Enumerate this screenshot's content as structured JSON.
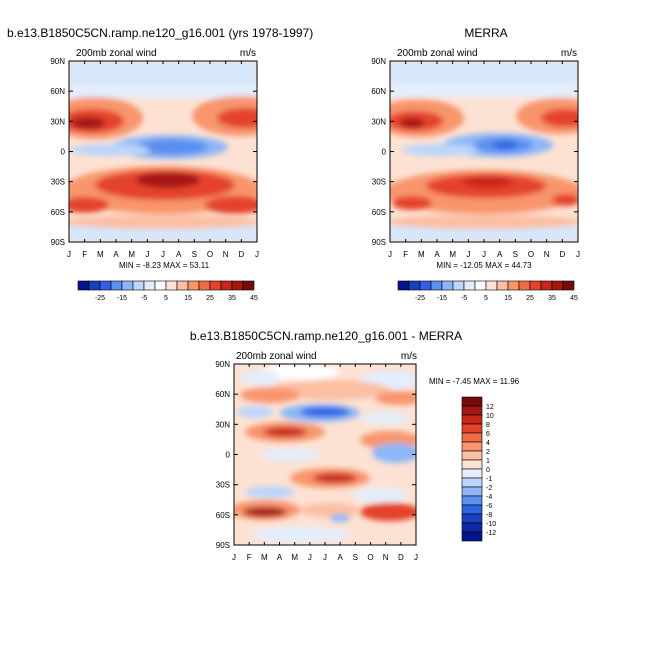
{
  "chart_data": [
    {
      "type": "heatmap",
      "title": "b.e13.B1850C5CN.ramp.ne120_g16.001 (yrs 1978-1997)",
      "subtitle_left": "200mb zonal wind",
      "subtitle_right": "m/s",
      "x_ticks": [
        "J",
        "F",
        "M",
        "A",
        "M",
        "J",
        "J",
        "A",
        "S",
        "O",
        "N",
        "D",
        "J"
      ],
      "y_ticks": [
        "90N",
        "60N",
        "30N",
        "0",
        "30S",
        "60S",
        "90S"
      ],
      "stats": "MIN = -8.23 MAX = 53.11",
      "colorbar": {
        "labels": [
          "-25",
          "-15",
          "-5",
          "5",
          "15",
          "25",
          "35",
          "45"
        ],
        "colors": [
          "#04148c",
          "#1a3fbf",
          "#2f62e3",
          "#5b8ff0",
          "#8db7f7",
          "#bcd5fb",
          "#e3eefd",
          "#ffffff",
          "#fde2d3",
          "#fbbfa3",
          "#f8956d",
          "#f26a44",
          "#e4432a",
          "#c9261d",
          "#a51612",
          "#7a0a0a"
        ]
      }
    },
    {
      "type": "heatmap",
      "title": "MERRA",
      "subtitle_left": "200mb zonal wind",
      "subtitle_right": "m/s",
      "x_ticks": [
        "J",
        "F",
        "M",
        "A",
        "M",
        "J",
        "J",
        "A",
        "S",
        "O",
        "N",
        "D",
        "J"
      ],
      "y_ticks": [
        "90N",
        "60N",
        "30N",
        "0",
        "30S",
        "60S",
        "90S"
      ],
      "stats": "MIN = -12.05 MAX = 44.73",
      "colorbar": {
        "labels": [
          "-25",
          "-15",
          "-5",
          "5",
          "15",
          "25",
          "35",
          "45"
        ],
        "colors": [
          "#04148c",
          "#1a3fbf",
          "#2f62e3",
          "#5b8ff0",
          "#8db7f7",
          "#bcd5fb",
          "#e3eefd",
          "#ffffff",
          "#fde2d3",
          "#fbbfa3",
          "#f8956d",
          "#f26a44",
          "#e4432a",
          "#c9261d",
          "#a51612",
          "#7a0a0a"
        ]
      }
    },
    {
      "type": "heatmap",
      "title": "b.e13.B1850C5CN.ramp.ne120_g16.001 - MERRA",
      "subtitle_left": "200mb zonal wind",
      "subtitle_right": "m/s",
      "x_ticks": [
        "J",
        "F",
        "M",
        "A",
        "M",
        "J",
        "J",
        "A",
        "S",
        "O",
        "N",
        "D",
        "J"
      ],
      "y_ticks": [
        "90N",
        "60N",
        "30N",
        "0",
        "30S",
        "60S",
        "90S"
      ],
      "stats": "MIN = -7.45 MAX = 11.96",
      "colorbar": {
        "labels": [
          "12",
          "10",
          "8",
          "6",
          "4",
          "2",
          "1",
          "0",
          "-1",
          "-2",
          "-4",
          "-6",
          "-8",
          "-10",
          "-12"
        ],
        "colors": [
          "#7a0a0a",
          "#a51612",
          "#c9261d",
          "#e4432a",
          "#f26a44",
          "#f8956d",
          "#fbbfa3",
          "#fde2d3",
          "#e3eefd",
          "#bcd5fb",
          "#8db7f7",
          "#5b8ff0",
          "#2f62e3",
          "#1a3fbf",
          "#0c2aa6",
          "#04148c"
        ]
      }
    }
  ]
}
